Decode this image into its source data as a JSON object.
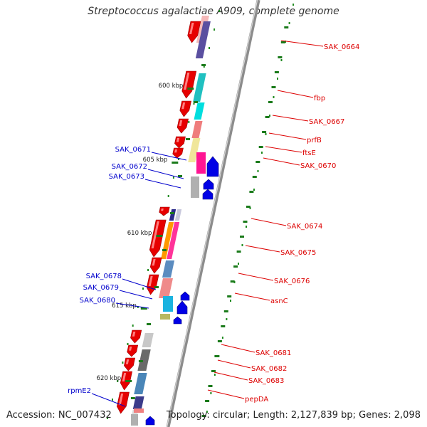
{
  "title": "Streptococcus agalactiae A909, complete genome",
  "footer": {
    "accession": "Accession: NC_007432",
    "topology": "Topology: circular; Length: 2,127,839 bp; Genes: 2,098"
  },
  "colors": {
    "backbone": "#8c8c8c",
    "tick": "#1a7a1a",
    "gc_dot": "#1e8a1e",
    "forward_label": "#dd0000",
    "reverse_label": "#0000cc",
    "cds_forward": "#e60000",
    "cds_reverse": "#0000e6"
  },
  "scale_marks": [
    "600 kbp",
    "605 kbp",
    "610 kbp",
    "615 kbp",
    "620 kbp"
  ],
  "forward_genes": [
    "SAK_0664",
    "fbp",
    "SAK_0667",
    "prfB",
    "ftsE",
    "SAK_0670",
    "SAK_0674",
    "SAK_0675",
    "SAK_0676",
    "asnC",
    "SAK_0681",
    "SAK_0682",
    "SAK_0683",
    "pepDA"
  ],
  "reverse_genes": [
    "SAK_0671",
    "SAK_0672",
    "SAK_0673",
    "SAK_0678",
    "SAK_0679",
    "SAK_0680",
    "rpmE2"
  ]
}
